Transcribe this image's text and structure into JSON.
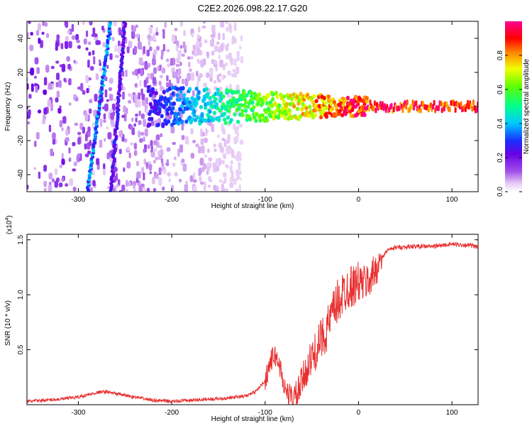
{
  "chart_data": [
    {
      "type": "heatmap",
      "title": "C2E2.2026.098.22.17.G20",
      "xlabel": "Height of straight line (km)",
      "ylabel": "Frequency (Hz)",
      "xlim": [
        -355,
        128
      ],
      "ylim": [
        -50,
        50
      ],
      "xticks": [
        -300,
        -200,
        -100,
        0,
        100
      ],
      "yticks": [
        -40,
        -20,
        0,
        20,
        40
      ],
      "colorbar": {
        "label": "Normalized spectral amplitude",
        "range": [
          0,
          1
        ],
        "ticks": [
          "0.0",
          "0.2",
          "0.4",
          "0.6",
          "0.8"
        ],
        "tick_values": [
          0.0,
          0.2,
          0.4,
          0.6,
          0.8
        ]
      },
      "features": [
        {
          "name": "steep diagonal streak",
          "x_at_freq_minus50": -290,
          "x_at_freq_plus50": -265,
          "amplitude": 0.35
        },
        {
          "name": "secondary diagonal streak",
          "x_at_freq_minus50": -265,
          "x_at_freq_plus50": -250,
          "amplitude": 0.25
        },
        {
          "name": "main signal band",
          "freq_hz": 0,
          "x_start": -225,
          "x_end": 128,
          "amplitude_start": 0.25,
          "amplitude_end": 0.95
        }
      ]
    },
    {
      "type": "line",
      "title": "",
      "xlabel": "Height of straight line (km)",
      "ylabel": "SNR (10 * v/v)",
      "multiplier_base": "(x10",
      "multiplier_exp": "4",
      "multiplier_close": ")",
      "xlim": [
        -355,
        128
      ],
      "ylim": [
        0,
        1.55
      ],
      "xticks": [
        -300,
        -200,
        -100,
        0,
        100
      ],
      "yticks": [
        0.5,
        1.0,
        1.5
      ],
      "ytick_labels": [
        "0.5",
        "1.0",
        "1.5"
      ],
      "series": [
        {
          "name": "SNR",
          "color": "#e83030",
          "x": [
            -355,
            -320,
            -300,
            -280,
            -270,
            -260,
            -240,
            -220,
            -200,
            -180,
            -160,
            -140,
            -120,
            -110,
            -100,
            -95,
            -90,
            -85,
            -80,
            -75,
            -70,
            -65,
            -60,
            -55,
            -50,
            -45,
            -40,
            -35,
            -30,
            -25,
            -20,
            -15,
            -10,
            -5,
            0,
            5,
            10,
            15,
            20,
            25,
            30,
            40,
            60,
            80,
            100,
            120,
            128
          ],
          "y": [
            0.03,
            0.05,
            0.07,
            0.11,
            0.12,
            0.1,
            0.07,
            0.04,
            0.03,
            0.04,
            0.05,
            0.06,
            0.08,
            0.12,
            0.22,
            0.38,
            0.45,
            0.38,
            0.18,
            0.08,
            0.05,
            0.1,
            0.22,
            0.34,
            0.42,
            0.5,
            0.6,
            0.66,
            0.78,
            0.88,
            0.97,
            1.03,
            1.08,
            1.08,
            1.12,
            1.1,
            1.12,
            1.18,
            1.26,
            1.33,
            1.4,
            1.43,
            1.44,
            1.44,
            1.46,
            1.45,
            1.43
          ]
        }
      ]
    }
  ]
}
